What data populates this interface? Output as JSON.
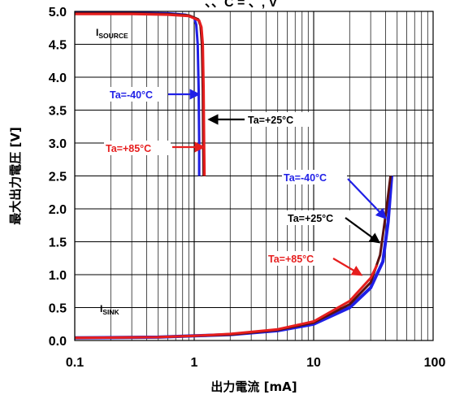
{
  "chart_data": {
    "type": "line",
    "title": "",
    "top_partial_text": "、、C   = 、, V",
    "xlabel": "出力電流 [mA]",
    "ylabel": "最大出力電圧 [V]",
    "xscale": "log",
    "xlim": [
      0.1,
      100
    ],
    "ylim": [
      0.0,
      5.0
    ],
    "grid": true,
    "x_ticks": [
      0.1,
      1,
      10,
      100
    ],
    "x_tick_labels": [
      "0.1",
      "1",
      "10",
      "100"
    ],
    "y_ticks": [
      0.0,
      0.5,
      1.0,
      1.5,
      2.0,
      2.5,
      3.0,
      3.5,
      4.0,
      4.5,
      5.0
    ],
    "y_tick_labels": [
      "0.0",
      "0.5",
      "1.0",
      "1.5",
      "2.0",
      "2.5",
      "3.0",
      "3.5",
      "4.0",
      "4.5",
      "5.0"
    ],
    "curve_labels": [
      {
        "id": "source",
        "main": "I",
        "sub": "SOURCE"
      },
      {
        "id": "sink",
        "main": "I",
        "sub": "SINK"
      }
    ],
    "annotations": [
      {
        "id": "src-m40",
        "text": "Ta=-40°C",
        "color": "#1f1fe6"
      },
      {
        "id": "src-p25",
        "text": "Ta=+25°C",
        "color": "#000000"
      },
      {
        "id": "src-p85",
        "text": "Ta=+85°C",
        "color": "#e61e1e"
      },
      {
        "id": "snk-m40",
        "text": "Ta=-40°C",
        "color": "#1f1fe6"
      },
      {
        "id": "snk-p25",
        "text": "Ta=+25°C",
        "color": "#000000"
      },
      {
        "id": "snk-p85",
        "text": "Ta=+85°C",
        "color": "#e61e1e"
      }
    ],
    "series": [
      {
        "id": "source-m40",
        "color": "#1f1fe6",
        "x": [
          0.1,
          0.3,
          0.6,
          0.85,
          1.0,
          1.04,
          1.07,
          1.09,
          1.1,
          1.1
        ],
        "y": [
          4.98,
          4.98,
          4.97,
          4.95,
          4.9,
          4.8,
          4.5,
          3.8,
          3.0,
          2.5
        ]
      },
      {
        "id": "source-p25",
        "color": "#5a1010",
        "x": [
          0.1,
          0.3,
          0.6,
          0.9,
          1.08,
          1.13,
          1.16,
          1.18,
          1.19,
          1.2
        ],
        "y": [
          4.97,
          4.97,
          4.96,
          4.94,
          4.88,
          4.78,
          4.5,
          3.8,
          3.0,
          2.5
        ]
      },
      {
        "id": "source-p85",
        "color": "#e61e1e",
        "x": [
          0.1,
          0.3,
          0.6,
          0.9,
          1.1,
          1.15,
          1.18,
          1.2,
          1.21,
          1.22
        ],
        "y": [
          4.96,
          4.96,
          4.95,
          4.93,
          4.86,
          4.76,
          4.5,
          3.8,
          3.0,
          2.5
        ]
      },
      {
        "id": "sink-m40",
        "color": "#1f1fe6",
        "x": [
          0.1,
          0.5,
          1,
          2,
          5,
          10,
          20,
          30,
          38,
          42,
          45
        ],
        "y": [
          0.04,
          0.05,
          0.07,
          0.09,
          0.15,
          0.25,
          0.5,
          0.8,
          1.2,
          1.8,
          2.5
        ]
      },
      {
        "id": "sink-p25",
        "color": "#5a1010",
        "x": [
          0.1,
          0.5,
          1,
          2,
          5,
          10,
          20,
          30,
          36,
          40,
          44
        ],
        "y": [
          0.04,
          0.05,
          0.07,
          0.09,
          0.16,
          0.27,
          0.55,
          0.88,
          1.3,
          1.9,
          2.5
        ]
      },
      {
        "id": "sink-p85",
        "color": "#e61e1e",
        "x": [
          0.1,
          0.5,
          1,
          2,
          5,
          10,
          20,
          30,
          34
        ],
        "y": [
          0.04,
          0.05,
          0.07,
          0.1,
          0.17,
          0.29,
          0.6,
          0.95,
          1.15
        ]
      }
    ]
  }
}
